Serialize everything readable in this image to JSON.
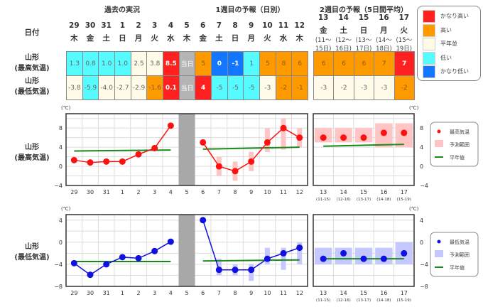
{
  "sections": {
    "past": "過去の実況",
    "week1": "1週目の予報（日別）",
    "week2": "2週目の予報（5日間平均）"
  },
  "date_label": "日付",
  "days": [
    {
      "d": "29",
      "w": "木"
    },
    {
      "d": "30",
      "w": "金"
    },
    {
      "d": "31",
      "w": "土"
    },
    {
      "d": "1",
      "w": "日"
    },
    {
      "d": "2",
      "w": "月"
    },
    {
      "d": "3",
      "w": "火"
    },
    {
      "d": "4",
      "w": "水"
    },
    {
      "d": "5",
      "w": "木"
    },
    {
      "d": "6",
      "w": "金"
    },
    {
      "d": "7",
      "w": "土"
    },
    {
      "d": "8",
      "w": "日"
    },
    {
      "d": "9",
      "w": "月"
    },
    {
      "d": "10",
      "w": "火"
    },
    {
      "d": "11",
      "w": "水"
    },
    {
      "d": "12",
      "w": "木"
    }
  ],
  "week2_days": [
    {
      "d": "13",
      "w": "金",
      "r1": "(11～",
      "r2": "15日)",
      "tick": "(11-15)"
    },
    {
      "d": "14",
      "w": "土",
      "r1": "(12～",
      "r2": "16日)",
      "tick": "(12-16)"
    },
    {
      "d": "15",
      "w": "日",
      "r1": "(13～",
      "r2": "17日)",
      "tick": "(13-17)"
    },
    {
      "d": "16",
      "w": "月",
      "r1": "(14～",
      "r2": "18日)",
      "tick": "(14-18)"
    },
    {
      "d": "17",
      "w": "火",
      "r1": "(15～",
      "r2": "19日)",
      "tick": "(15-19)"
    }
  ],
  "rows": [
    {
      "label1": "山形",
      "label2": "(最高気温)",
      "cells": [
        [
          "1.3",
          "cyan"
        ],
        [
          "0.8",
          "cyan"
        ],
        [
          "1.0",
          "cyan"
        ],
        [
          "1.0",
          "cyan"
        ],
        [
          "2.5",
          "cream"
        ],
        [
          "3.8",
          "cream"
        ],
        [
          "8.5",
          "red"
        ],
        [
          "当日",
          "gray"
        ],
        [
          "5",
          "orange"
        ],
        [
          "0",
          "blue"
        ],
        [
          "-1",
          "blue"
        ],
        [
          "1",
          "cyan"
        ],
        [
          "5",
          "orange"
        ],
        [
          "8",
          "orange"
        ],
        [
          "6",
          "orange"
        ]
      ],
      "week2": [
        [
          "6",
          "orange"
        ],
        [
          "6",
          "orange"
        ],
        [
          "6",
          "orange"
        ],
        [
          "7",
          "orange"
        ],
        [
          "7",
          "red"
        ]
      ]
    },
    {
      "label1": "山形",
      "label2": "(最低気温)",
      "cells": [
        [
          "-3.8",
          "cream"
        ],
        [
          "-5.9",
          "cyan"
        ],
        [
          "-4.0",
          "cream"
        ],
        [
          "-2.7",
          "cream"
        ],
        [
          "-2.9",
          "cream"
        ],
        [
          "-1.6",
          "orange"
        ],
        [
          "0.1",
          "red"
        ],
        [
          "当日",
          "gray"
        ],
        [
          "4",
          "red"
        ],
        [
          "-5",
          "cyan"
        ],
        [
          "-5",
          "cyan"
        ],
        [
          "-5",
          "cyan"
        ],
        [
          "-3",
          "cream"
        ],
        [
          "-2",
          "orange"
        ],
        [
          "-1",
          "orange"
        ]
      ],
      "week2": [
        [
          "-3",
          "cream"
        ],
        [
          "-2",
          "cream"
        ],
        [
          "-3",
          "cream"
        ],
        [
          "-3",
          "cream"
        ],
        [
          "-2",
          "orange"
        ]
      ]
    }
  ],
  "legend": [
    {
      "label": "かなり高い",
      "color": "#ff2020"
    },
    {
      "label": "高い",
      "color": "#ff9900"
    },
    {
      "label": "平年並",
      "color": "#fffbe8"
    },
    {
      "label": "低い",
      "color": "#55fbff"
    },
    {
      "label": "かなり低い",
      "color": "#1276ff"
    }
  ],
  "chart_data": [
    {
      "type": "line",
      "title": "山形 (最高気温)",
      "label1": "山形",
      "label2": "(最高気温)",
      "unit": "(℃)",
      "ylim": [
        -4,
        11
      ],
      "yticks": [
        -4,
        0,
        4,
        8
      ],
      "color": "#ff1010",
      "range_color": "#ffc4c4",
      "values": [
        1.3,
        0.8,
        1.0,
        1.0,
        2.5,
        3.8,
        8.5,
        null,
        5,
        0,
        -1,
        1,
        5,
        8,
        6
      ],
      "ranges": [
        null,
        null,
        null,
        null,
        null,
        null,
        null,
        null,
        null,
        [
          -2,
          2
        ],
        [
          -3,
          1
        ],
        [
          -1,
          3
        ],
        [
          3,
          8
        ],
        [
          3.5,
          10
        ],
        [
          4,
          8
        ]
      ],
      "normal": [
        3.2,
        3.4
      ],
      "normal_week1": [
        3.6,
        4.0
      ],
      "week2_values": [
        6,
        6,
        6,
        7,
        7
      ],
      "week2_ranges": [
        [
          5,
          8
        ],
        [
          5,
          8
        ],
        [
          5,
          8
        ],
        [
          4,
          9
        ],
        [
          4,
          9
        ]
      ],
      "week2_normal": [
        4.2,
        4.6
      ],
      "legend": {
        "point": "最高気温",
        "range": "予測範囲",
        "normal": "平年値"
      }
    },
    {
      "type": "line",
      "title": "山形 (最低気温)",
      "label1": "山形",
      "label2": "(最低気温)",
      "unit": "(℃)",
      "ylim": [
        -8,
        5
      ],
      "yticks": [
        -8,
        -4,
        0,
        4
      ],
      "color": "#1010e0",
      "range_color": "#c4c8ff",
      "values": [
        -3.8,
        -5.9,
        -4.0,
        -2.7,
        -2.9,
        -1.6,
        0.1,
        null,
        4,
        -5,
        -5,
        -5,
        -3,
        -2,
        -1
      ],
      "ranges": [
        null,
        null,
        null,
        null,
        null,
        null,
        null,
        null,
        null,
        [
          -6,
          -3
        ],
        [
          -6,
          -4
        ],
        [
          -7,
          -4
        ],
        [
          -4,
          -1
        ],
        [
          -5,
          -1
        ],
        [
          -4,
          0
        ]
      ],
      "normal": [
        -3.5,
        -3.5
      ],
      "normal_week1": [
        -3.4,
        -3.2
      ],
      "week2_values": [
        -3,
        -2,
        -3,
        -3,
        -2
      ],
      "week2_ranges": [
        [
          -4,
          -1
        ],
        [
          -4,
          -1
        ],
        [
          -4,
          -1
        ],
        [
          -4,
          -1
        ],
        [
          -4,
          0
        ]
      ],
      "week2_normal": [
        -3,
        -3
      ],
      "legend": {
        "point": "最低気温",
        "range": "予測範囲",
        "normal": "平年値"
      }
    }
  ]
}
